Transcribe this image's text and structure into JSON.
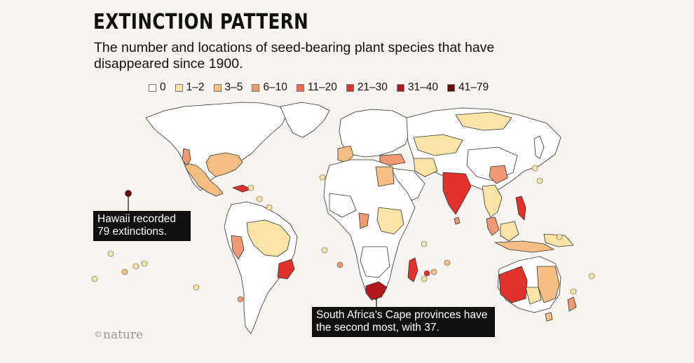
{
  "title": "EXTINCTION PATTERN",
  "subtitle": "The number and locations of seed-bearing plant species that have disappeared since 1900.",
  "legend": [
    {
      "label": "0",
      "color": "#ffffff"
    },
    {
      "label": "1–2",
      "color": "#fbe4a6"
    },
    {
      "label": "3–5",
      "color": "#f6be82"
    },
    {
      "label": "6–10",
      "color": "#ef9a72"
    },
    {
      "label": "11–20",
      "color": "#eb6a5c"
    },
    {
      "label": "21–30",
      "color": "#e0312c"
    },
    {
      "label": "31–40",
      "color": "#b4161b"
    },
    {
      "label": "41–79",
      "color": "#6e0b0f"
    }
  ],
  "callouts": {
    "hawaii": "Hawaii recorded 79 extinctions.",
    "south_africa": "South Africa’s Cape provinces have the second most, with 37."
  },
  "credit": {
    "mark": "©",
    "name": "nature"
  }
}
